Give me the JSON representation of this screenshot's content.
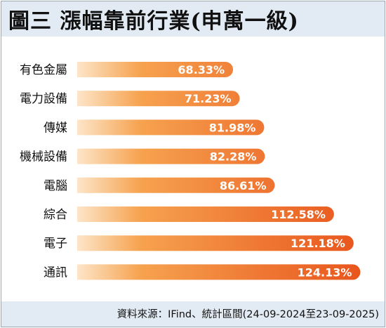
{
  "header": {
    "title": "圖三 漲幅靠前行業(申萬一級)"
  },
  "footer": {
    "source": "資料來源：IFind、統計區間(24-09-2024至23-09-2025)"
  },
  "colors": {
    "bar_start": "#fde5c8",
    "bar_mid": "#f6a24f",
    "bar_end": "#e8531b",
    "label": "#ffffff",
    "category_text": "#111111"
  },
  "chart_data": {
    "type": "bar",
    "orientation": "horizontal",
    "categories": [
      "有色金屬",
      "電力設備",
      "傳媒",
      "機械設備",
      "電腦",
      "綜合",
      "電子",
      "通訊"
    ],
    "values": [
      68.33,
      71.23,
      81.98,
      82.28,
      86.61,
      112.58,
      121.18,
      124.13
    ],
    "value_labels": [
      "68.33%",
      "71.23%",
      "81.98%",
      "82.28%",
      "86.61%",
      "112.58%",
      "121.18%",
      "124.13%"
    ],
    "unit": "%",
    "grid": false,
    "legend": "none"
  }
}
